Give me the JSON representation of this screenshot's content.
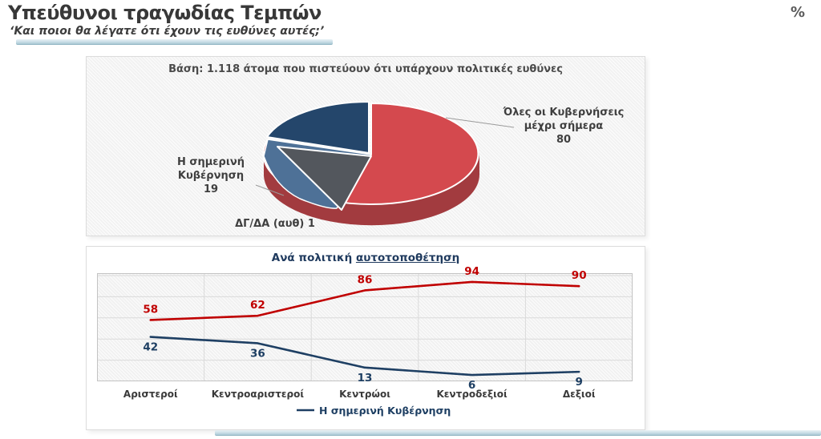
{
  "page": {
    "title": "Υπεύθυνοι τραγωδίας Τεμπών",
    "subtitle": "‘Και ποιοι θα λέγατε ότι έχουν τις ευθύνες αυτές;’",
    "unit_sign": "%"
  },
  "pie_card": {
    "base_note": "Βάση: 1.118 άτομα που πιστεύουν ότι υπάρχουν πολιτικές ευθύνες"
  },
  "line_card": {
    "title_prefix": "Ανά πολιτική",
    "title_underlined": "αυτοτοποθέτηση"
  },
  "chart_data": [
    {
      "type": "pie",
      "title": "Βάση: 1.118 άτομα που πιστεύουν ότι υπάρχουν πολιτικές ευθύνες",
      "slices": [
        {
          "label": "Όλες οι Κυβερνήσεις μέχρι σήμερα",
          "label_lines": [
            "Όλες οι Κυβερνήσεις",
            "μέχρι σήμερα"
          ],
          "value": 80,
          "color": "#d4494e",
          "side_color": "#a23b3f"
        },
        {
          "label": "Η σημερινή Κυβέρνηση",
          "label_lines": [
            "Η σημερινή",
            "Κυβέρνηση"
          ],
          "value": 19,
          "color": "#24466b",
          "side_color": "#4e7197"
        },
        {
          "label": "ΔΓ/ΔΑ (αυθ)",
          "value": 1,
          "color": "#53575d"
        }
      ]
    },
    {
      "type": "line",
      "title": "Ανά πολιτική αυτοτοποθέτηση",
      "categories": [
        "Αριστεροί",
        "Κεντροαριστεροί",
        "Κεντρώοι",
        "Κεντροδεξιοί",
        "Δεξιοί"
      ],
      "series": [
        {
          "name": "Όλες οι Κυβερνήσεις μέχρι σήμερα",
          "color": "#c00000",
          "values": [
            58,
            62,
            86,
            94,
            90
          ]
        },
        {
          "name": "Η σημερινή Κυβέρνηση",
          "color": "#1e3f63",
          "values": [
            42,
            36,
            13,
            6,
            9
          ]
        }
      ],
      "ylim": [
        0,
        100
      ],
      "grid": true,
      "legend_position": "bottom",
      "legend_entries": [
        {
          "name": "Η σημερινή Κυβέρνηση",
          "color": "#1e3f63"
        }
      ]
    }
  ]
}
